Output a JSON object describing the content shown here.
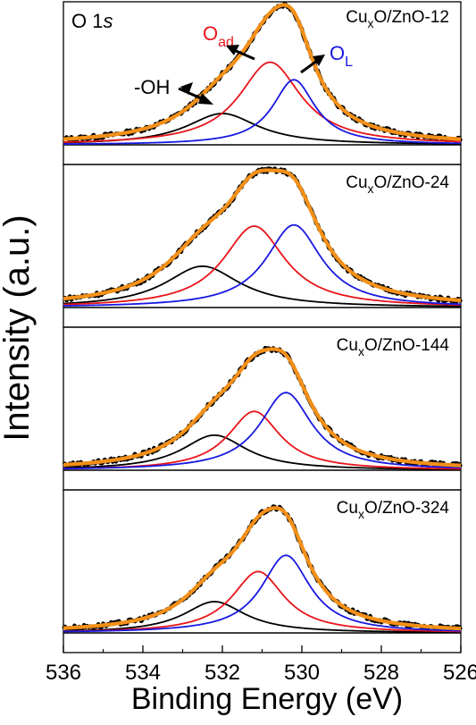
{
  "chart_data": {
    "type": "line",
    "title": "",
    "xlabel": "Binding Energy (eV)",
    "ylabel": "Intensity (a.u.)",
    "xlim": [
      536,
      526
    ],
    "x_axis_reversed": true,
    "x_ticks": [
      536,
      534,
      532,
      530,
      528,
      526
    ],
    "x_tick_labels": [
      "536",
      "534",
      "532",
      "530",
      "528",
      "526"
    ],
    "core_level": "O 1s",
    "colors": {
      "raw": "#000000",
      "envelope": "#F39019",
      "OH": "#000000",
      "Oad": "#E8141B",
      "OL": "#1818E0",
      "baseline": "#000000"
    },
    "annotations": [
      {
        "text": "-OH",
        "color": "#000000"
      },
      {
        "text": "O",
        "sub": "ad",
        "color": "#E8141B"
      },
      {
        "text": "O",
        "sub": "L",
        "color": "#1818E0"
      }
    ],
    "panels": [
      {
        "sample_label": {
          "pre": "Cu",
          "sub": "x",
          "post": "O/ZnO-12"
        },
        "components": [
          {
            "name": "-OH",
            "center": 532.0,
            "fwhm": 2.2,
            "height": 0.25
          },
          {
            "name": "Oad",
            "center": 530.8,
            "fwhm": 1.9,
            "height": 0.66
          },
          {
            "name": "OL",
            "center": 530.2,
            "fwhm": 1.3,
            "height": 0.52
          }
        ]
      },
      {
        "sample_label": {
          "pre": "Cu",
          "sub": "x",
          "post": "O/ZnO-24"
        },
        "components": [
          {
            "name": "-OH",
            "center": 532.5,
            "fwhm": 2.3,
            "height": 0.33
          },
          {
            "name": "Oad",
            "center": 531.2,
            "fwhm": 1.9,
            "height": 0.65
          },
          {
            "name": "OL",
            "center": 530.2,
            "fwhm": 1.7,
            "height": 0.66
          }
        ]
      },
      {
        "sample_label": {
          "pre": "Cu",
          "sub": "x",
          "post": "O/ZnO-144"
        },
        "components": [
          {
            "name": "-OH",
            "center": 532.2,
            "fwhm": 2.0,
            "height": 0.28
          },
          {
            "name": "Oad",
            "center": 531.2,
            "fwhm": 1.6,
            "height": 0.47
          },
          {
            "name": "OL",
            "center": 530.4,
            "fwhm": 1.6,
            "height": 0.62
          }
        ]
      },
      {
        "sample_label": {
          "pre": "Cu",
          "sub": "x",
          "post": "O/ZnO-324"
        },
        "components": [
          {
            "name": "-OH",
            "center": 532.2,
            "fwhm": 1.9,
            "height": 0.25
          },
          {
            "name": "Oad",
            "center": 531.1,
            "fwhm": 1.6,
            "height": 0.49
          },
          {
            "name": "OL",
            "center": 530.4,
            "fwhm": 1.5,
            "height": 0.62
          }
        ]
      }
    ],
    "grid": false,
    "legend": "none"
  }
}
